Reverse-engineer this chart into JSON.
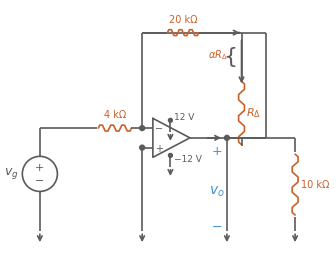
{
  "bg_color": "#ffffff",
  "line_color": "#5a5a5a",
  "orange_color": "#c8602a",
  "blue_color": "#4a90c8",
  "fig_width": 3.36,
  "fig_height": 2.64,
  "dpi": 100,
  "res4_label": "4 kΩ",
  "res20_label": "20 kΩ",
  "res10_label": "10 kΩ",
  "rdelta_label": "RΔ",
  "ardelta_label": "αRΔ",
  "v12_label": "12 V",
  "vm12_label": "−12 V",
  "vg_label": "v_g",
  "vo_label": "v_o"
}
